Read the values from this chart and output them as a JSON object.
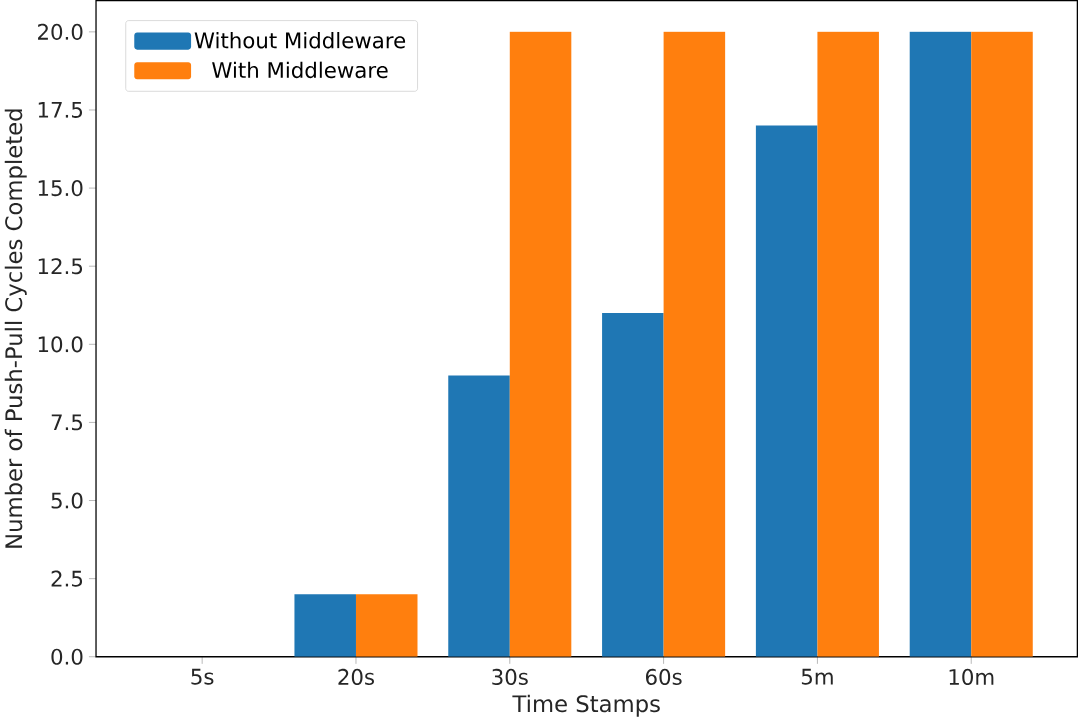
{
  "chart_data": {
    "type": "bar",
    "xlabel": "Time Stamps",
    "ylabel": "Number of Push-Pull Cycles Completed",
    "categories": [
      "5s",
      "20s",
      "30s",
      "60s",
      "5m",
      "10m"
    ],
    "series": [
      {
        "name": "Without Middleware",
        "color": "#1f77b4",
        "values": [
          0,
          2,
          9,
          11,
          17,
          20
        ]
      },
      {
        "name": "With Middleware",
        "color": "#ff7f0e",
        "values": [
          0,
          2,
          20,
          20,
          20,
          20
        ]
      }
    ],
    "ylim": [
      0,
      21
    ],
    "yticks": [
      {
        "value": 0,
        "label": "0.0"
      },
      {
        "value": 2.5,
        "label": "2.5"
      },
      {
        "value": 5,
        "label": "5.0"
      },
      {
        "value": 7.5,
        "label": "7.5"
      },
      {
        "value": 10,
        "label": "10.0"
      },
      {
        "value": 12.5,
        "label": "12.5"
      },
      {
        "value": 15,
        "label": "15.0"
      },
      {
        "value": 17.5,
        "label": "17.5"
      },
      {
        "value": 20,
        "label": "20.0"
      }
    ],
    "grid": false,
    "legend": "top left"
  }
}
